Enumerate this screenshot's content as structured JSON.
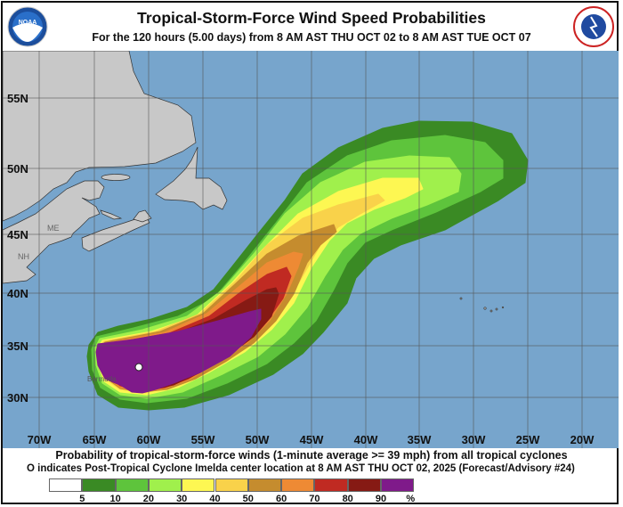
{
  "header": {
    "title": "Tropical-Storm-Force Wind Speed Probabilities",
    "subtitle": "For the 120 hours (5.00 days) from 8 AM AST THU OCT 02 to 8 AM AST TUE OCT 07",
    "left_logo": "NOAA",
    "right_logo": "NATIONAL WEATHER SERVICE"
  },
  "map": {
    "lat_labels": [
      "55N",
      "50N",
      "45N",
      "40N",
      "35N",
      "30N"
    ],
    "lon_labels": [
      "70W",
      "65W",
      "60W",
      "55W",
      "50W",
      "45W",
      "40W",
      "35W",
      "30W",
      "25W",
      "20W"
    ],
    "place_labels": {
      "maine": "ME",
      "new_hampshire": "NH",
      "bermuda": "Bermuda"
    },
    "colors": {
      "ocean": "#77a5cc",
      "land": "#c8c8c8",
      "grid": "#555555"
    },
    "storm_marker": "white-circle"
  },
  "footer": {
    "line1": "Probability of tropical-storm-force winds (1-minute average >= 39 mph) from all tropical cyclones",
    "line2_symbol": "O",
    "line2": "indicates Post-Tropical Cyclone Imelda center location at 8 AM AST THU OCT 02, 2025 (Forecast/Advisory #24)"
  },
  "legend": {
    "labels": [
      "5",
      "10",
      "20",
      "30",
      "40",
      "50",
      "60",
      "70",
      "80",
      "90",
      "%"
    ],
    "colors": [
      "#ffffff",
      "#3a8a24",
      "#5ec43c",
      "#a0f04c",
      "#fdf752",
      "#f9d24a",
      "#c58c2e",
      "#ee8a34",
      "#c02a22",
      "#861a14",
      "#7f1a8a"
    ]
  }
}
